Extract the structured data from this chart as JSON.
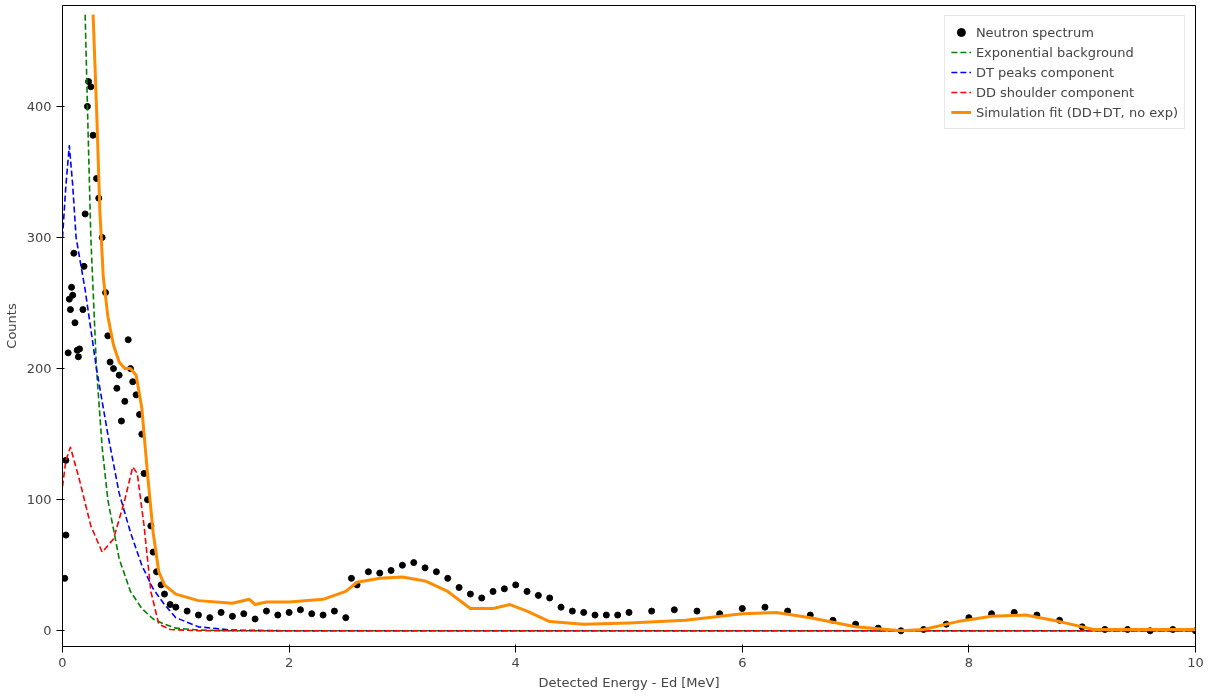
{
  "chart_data": {
    "type": "line",
    "xlabel": "Detected Energy - Ed [MeV]",
    "ylabel": "Counts",
    "xlim": [
      0,
      10
    ],
    "ylim": [
      -12,
      477
    ],
    "xticks": [
      0,
      2,
      4,
      6,
      8,
      10
    ],
    "yticks": [
      0,
      100,
      200,
      300,
      400
    ],
    "grid": false,
    "legend": "top right",
    "series": [
      {
        "name": "Neutron spectrum",
        "type": "scatter",
        "marker": "circle",
        "color": "#000000",
        "x": [
          0.02,
          0.03,
          0.03,
          0.05,
          0.06,
          0.07,
          0.08,
          0.09,
          0.1,
          0.11,
          0.13,
          0.14,
          0.15,
          0.18,
          0.19,
          0.2,
          0.22,
          0.23,
          0.25,
          0.27,
          0.3,
          0.32,
          0.35,
          0.38,
          0.4,
          0.42,
          0.45,
          0.48,
          0.5,
          0.52,
          0.55,
          0.58,
          0.6,
          0.62,
          0.65,
          0.68,
          0.7,
          0.72,
          0.75,
          0.78,
          0.8,
          0.83,
          0.87,
          0.9,
          0.95,
          1.0,
          1.1,
          1.2,
          1.3,
          1.4,
          1.5,
          1.6,
          1.7,
          1.8,
          1.9,
          2.0,
          2.1,
          2.2,
          2.3,
          2.4,
          2.5,
          2.55,
          2.6,
          2.7,
          2.8,
          2.9,
          3.0,
          3.1,
          3.2,
          3.3,
          3.4,
          3.5,
          3.6,
          3.7,
          3.8,
          3.9,
          4.0,
          4.1,
          4.2,
          4.3,
          4.4,
          4.5,
          4.6,
          4.7,
          4.8,
          4.9,
          5.0,
          5.2,
          5.4,
          5.6,
          5.8,
          6.0,
          6.2,
          6.4,
          6.6,
          6.8,
          7.0,
          7.2,
          7.4,
          7.6,
          7.8,
          8.0,
          8.2,
          8.4,
          8.6,
          8.8,
          9.0,
          9.2,
          9.4,
          9.6,
          9.8,
          10.0
        ],
        "values": [
          40,
          73,
          130,
          212,
          253,
          245,
          262,
          256,
          288,
          235,
          214,
          209,
          215,
          245,
          278,
          318,
          400,
          419,
          415,
          378,
          345,
          330,
          300,
          258,
          225,
          205,
          200,
          185,
          195,
          160,
          175,
          222,
          200,
          190,
          180,
          165,
          150,
          120,
          100,
          80,
          60,
          45,
          35,
          28,
          20,
          18,
          15,
          12,
          10,
          14,
          11,
          13,
          9,
          15,
          12,
          14,
          16,
          13,
          12,
          15,
          10,
          40,
          35,
          45,
          44,
          46,
          50,
          52,
          48,
          45,
          40,
          33,
          28,
          25,
          30,
          32,
          35,
          30,
          27,
          25,
          18,
          15,
          14,
          12,
          12,
          12,
          14,
          15,
          16,
          15,
          13,
          17,
          18,
          15,
          12,
          8,
          5,
          2,
          0,
          1,
          5,
          10,
          13,
          14,
          12,
          8,
          3,
          1,
          1,
          0,
          1,
          0
        ]
      },
      {
        "name": "Exponential background",
        "line_style": "dashed",
        "color": "#008000",
        "x": [
          0.2,
          0.22,
          0.25,
          0.3,
          0.35,
          0.4,
          0.5,
          0.6,
          0.7,
          0.8,
          0.9,
          1.0,
          1.2,
          1.5,
          10
        ],
        "values": [
          470,
          400,
          300,
          200,
          140,
          100,
          55,
          30,
          17,
          9,
          5,
          2,
          0.5,
          0,
          0
        ]
      },
      {
        "name": "DT peaks component",
        "line_style": "dashed",
        "color": "#0000ff",
        "x": [
          0,
          0.03,
          0.06,
          0.09,
          0.12,
          0.2,
          0.3,
          0.4,
          0.5,
          0.6,
          0.7,
          0.8,
          0.9,
          1.0,
          1.2,
          1.5,
          2,
          4,
          6,
          8,
          10
        ],
        "values": [
          300,
          340,
          370,
          340,
          300,
          260,
          200,
          150,
          105,
          75,
          50,
          32,
          20,
          10,
          3,
          0.5,
          0,
          0,
          0,
          0,
          0
        ]
      },
      {
        "name": "DD shoulder component",
        "line_style": "dashed",
        "color": "#ff0000",
        "x": [
          0,
          0.03,
          0.07,
          0.15,
          0.25,
          0.35,
          0.45,
          0.55,
          0.62,
          0.66,
          0.72,
          0.78,
          0.85,
          0.95,
          1.2,
          10
        ],
        "values": [
          110,
          130,
          140,
          115,
          80,
          60,
          70,
          100,
          125,
          120,
          80,
          30,
          5,
          1,
          0,
          0
        ]
      },
      {
        "name": "Simulation fit (DD+DT, no exp)",
        "line_style": "solid",
        "color": "#ff8c00",
        "x": [
          0.27,
          0.3,
          0.33,
          0.36,
          0.4,
          0.45,
          0.5,
          0.55,
          0.6,
          0.65,
          0.7,
          0.75,
          0.8,
          0.85,
          0.9,
          1.0,
          1.2,
          1.5,
          1.65,
          1.7,
          1.8,
          2.0,
          2.3,
          2.5,
          2.6,
          2.8,
          3.0,
          3.2,
          3.4,
          3.6,
          3.8,
          3.95,
          4.1,
          4.3,
          4.6,
          5.0,
          5.5,
          6.0,
          6.3,
          6.6,
          7.0,
          7.4,
          7.6,
          7.9,
          8.2,
          8.5,
          8.8,
          9.1,
          9.5,
          10
        ],
        "values": [
          470,
          400,
          320,
          270,
          240,
          218,
          205,
          200,
          200,
          195,
          170,
          120,
          75,
          45,
          35,
          28,
          23,
          21,
          24,
          20,
          22,
          22,
          24,
          30,
          37,
          40,
          41,
          38,
          30,
          17,
          17,
          20,
          15,
          7,
          5,
          6,
          8,
          13,
          14,
          10,
          3,
          0,
          1,
          7,
          11,
          12,
          7,
          1,
          1,
          1
        ]
      }
    ]
  }
}
